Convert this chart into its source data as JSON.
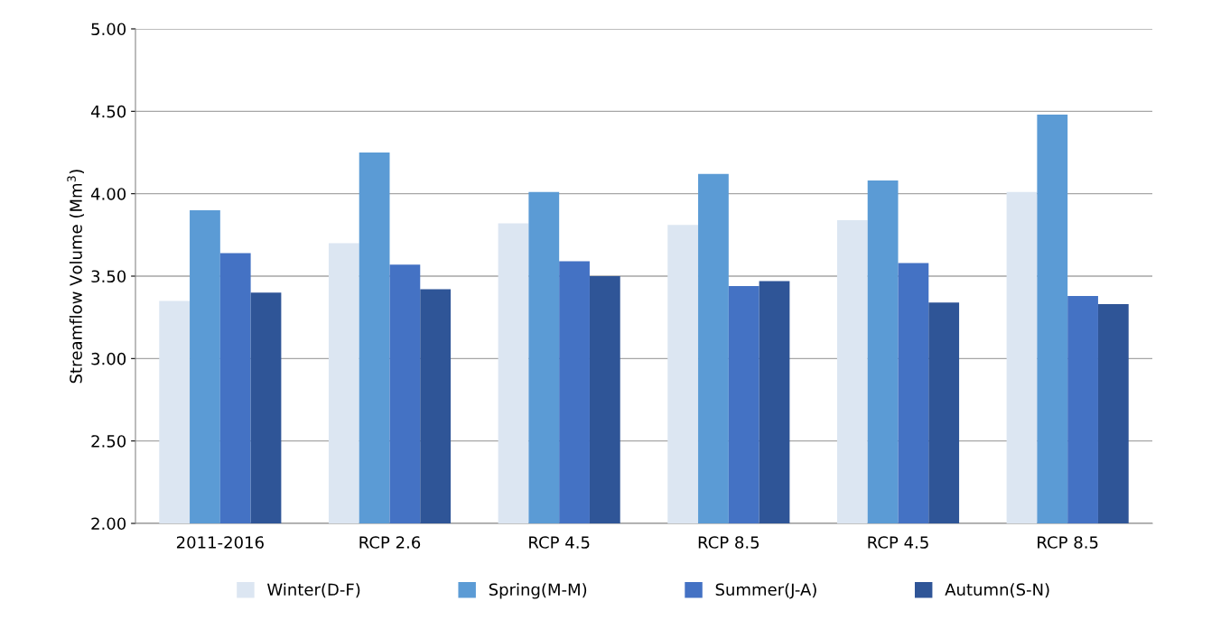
{
  "chart_data": {
    "type": "bar",
    "ylabel": "Streamflow Volume (Mm$^{3}$)",
    "categories": [
      "2011-2016",
      "RCP 2.6",
      "RCP 4.5",
      "RCP 8.5",
      "RCP 4.5",
      "RCP 8.5"
    ],
    "series": [
      {
        "name": "Winter(D-F)",
        "color": "#dce6f2",
        "values": [
          3.35,
          3.7,
          3.82,
          3.81,
          3.84,
          4.01
        ]
      },
      {
        "name": "Spring(M-M)",
        "color": "#5b9bd5",
        "values": [
          3.9,
          4.25,
          4.01,
          4.12,
          4.08,
          4.48
        ]
      },
      {
        "name": "Summer(J-A)",
        "color": "#4472c4",
        "values": [
          3.64,
          3.57,
          3.59,
          3.44,
          3.58,
          3.38
        ]
      },
      {
        "name": "Autumn(S-N)",
        "color": "#2f5597",
        "values": [
          3.4,
          3.42,
          3.5,
          3.47,
          3.34,
          3.33
        ]
      }
    ],
    "ylim": [
      2.0,
      5.0
    ],
    "yticks": [
      {
        "value": 2.0,
        "label": "2.00"
      },
      {
        "value": 2.5,
        "label": "2.50"
      },
      {
        "value": 3.0,
        "label": "3.00"
      },
      {
        "value": 3.5,
        "label": "3.50"
      },
      {
        "value": 4.0,
        "label": "4.00"
      },
      {
        "value": 4.5,
        "label": "4.50"
      },
      {
        "value": 5.0,
        "label": "5.00"
      }
    ],
    "grid": "y",
    "legend": "bottom"
  }
}
